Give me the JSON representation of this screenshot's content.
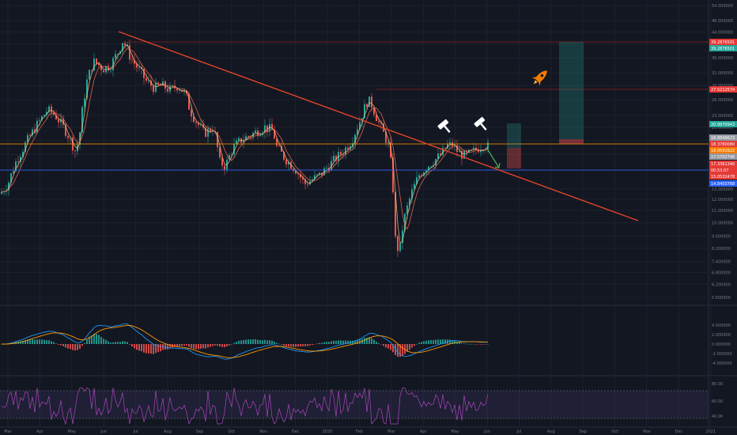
{
  "chart_data": {
    "type": "candlestick",
    "x_axis": {
      "labels": [
        "Mar",
        "Apr",
        "May",
        "Jun",
        "Jul",
        "Aug",
        "Sep",
        "Oct",
        "Nov",
        "Dec",
        "2020",
        "Feb",
        "Mar",
        "Apr",
        "May",
        "Jun",
        "Jul",
        "Aug",
        "Sep",
        "Oct",
        "Nov",
        "Dec",
        "2021"
      ]
    },
    "y_axis": {
      "scale": "log",
      "ticks": [
        "54.000000",
        "48.000000",
        "44.000000",
        "40.000000",
        "36.000000",
        "32.000000",
        "29.000000",
        "26.000000",
        "23.000000",
        "21.000000",
        "19.000000",
        "17.000000",
        "15.000000",
        "13.000000",
        "12.000000",
        "11.000000",
        "10.000000",
        "9.000000",
        "8.200000",
        "7.400000",
        "6.800000",
        "6.200000",
        "5.600000"
      ]
    },
    "price_tags": [
      {
        "value": "39.2876501",
        "color": "#e53935"
      },
      {
        "value": "39.2876501",
        "color": "#26a69a"
      },
      {
        "value": "27.5212574",
        "color": "#e53935"
      },
      {
        "value": "20.9970943",
        "color": "#26a69a"
      },
      {
        "value": "18.8849623",
        "color": "#9598a1"
      },
      {
        "value": "18.3780080",
        "color": "#e53935"
      },
      {
        "value": "18.0591622",
        "color": "#f57c00"
      },
      {
        "value": "17.5702796",
        "color": "#9598a1"
      },
      {
        "value": "17.3361340",
        "color": "#e53935"
      },
      {
        "value": "00:53:07",
        "color": "#e53935"
      },
      {
        "value": "15.0532478",
        "color": "#e53935"
      },
      {
        "value": "14.8403768",
        "color": "#2962ff"
      }
    ],
    "macd_axis": {
      "ticks": [
        "4.000000",
        "2.000000",
        "0.000000",
        "-2.000000",
        "-4.000000"
      ]
    },
    "rsi_axis": {
      "ticks": [
        "80.00",
        "60.00",
        "40.00"
      ]
    },
    "colors": {
      "up": "#26a69a",
      "down": "#ef5350",
      "trendline": "#e0452b",
      "ma_fast": "#e8c07d",
      "ma_slow": "#ef6c57",
      "macd": "#2196f3",
      "signal": "#ff9800",
      "rsi": "#ab47bc",
      "hline_orange": "#ff9800",
      "hline_blue": "#2962ff"
    },
    "icons": [
      "gavel-icon",
      "gavel-icon",
      "rocket-icon"
    ]
  }
}
